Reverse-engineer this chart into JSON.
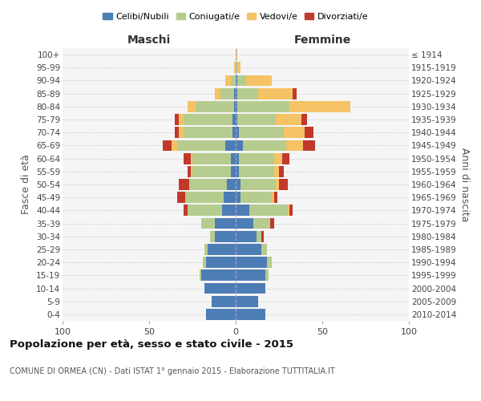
{
  "age_groups": [
    "0-4",
    "5-9",
    "10-14",
    "15-19",
    "20-24",
    "25-29",
    "30-34",
    "35-39",
    "40-44",
    "45-49",
    "50-54",
    "55-59",
    "60-64",
    "65-69",
    "70-74",
    "75-79",
    "80-84",
    "85-89",
    "90-94",
    "95-99",
    "100+"
  ],
  "birth_years": [
    "2010-2014",
    "2005-2009",
    "2000-2004",
    "1995-1999",
    "1990-1994",
    "1985-1989",
    "1980-1984",
    "1975-1979",
    "1970-1974",
    "1965-1969",
    "1960-1964",
    "1955-1959",
    "1950-1954",
    "1945-1949",
    "1940-1944",
    "1935-1939",
    "1930-1934",
    "1925-1929",
    "1920-1924",
    "1915-1919",
    "≤ 1914"
  ],
  "colors": {
    "celibi": "#4d7db5",
    "coniugati": "#b5cc8e",
    "vedovi": "#f5c265",
    "divorziati": "#c0392b"
  },
  "males": {
    "celibi": [
      17,
      14,
      18,
      20,
      17,
      16,
      12,
      12,
      8,
      7,
      5,
      3,
      3,
      6,
      2,
      2,
      1,
      1,
      0,
      0,
      0
    ],
    "coniugati": [
      0,
      0,
      0,
      1,
      2,
      2,
      3,
      8,
      20,
      22,
      22,
      22,
      22,
      28,
      28,
      28,
      22,
      8,
      3,
      0,
      0
    ],
    "vedovi": [
      0,
      0,
      0,
      0,
      0,
      0,
      0,
      0,
      0,
      0,
      0,
      1,
      1,
      3,
      3,
      3,
      5,
      3,
      3,
      1,
      0
    ],
    "divorziati": [
      0,
      0,
      0,
      0,
      0,
      0,
      0,
      0,
      2,
      5,
      6,
      2,
      4,
      5,
      2,
      2,
      0,
      0,
      0,
      0,
      0
    ]
  },
  "females": {
    "nubili": [
      17,
      13,
      17,
      17,
      18,
      15,
      12,
      10,
      8,
      3,
      3,
      2,
      2,
      4,
      2,
      1,
      1,
      1,
      1,
      0,
      0
    ],
    "coniugate": [
      0,
      0,
      0,
      2,
      3,
      3,
      3,
      10,
      22,
      18,
      20,
      20,
      20,
      25,
      26,
      22,
      30,
      12,
      5,
      1,
      0
    ],
    "vedove": [
      0,
      0,
      0,
      0,
      0,
      0,
      0,
      0,
      1,
      1,
      2,
      3,
      5,
      10,
      12,
      15,
      35,
      20,
      15,
      2,
      1
    ],
    "divorziate": [
      0,
      0,
      0,
      0,
      0,
      0,
      1,
      2,
      2,
      2,
      5,
      3,
      4,
      7,
      5,
      3,
      0,
      2,
      0,
      0,
      0
    ]
  },
  "xlim": 100,
  "title": "Popolazione per età, sesso e stato civile - 2015",
  "subtitle": "COMUNE DI ORMEA (CN) - Dati ISTAT 1° gennaio 2015 - Elaborazione TUTTITALIA.IT",
  "ylabel": "Fasce di età",
  "ylabel_right": "Anni di nascita",
  "xlabel_left": "Maschi",
  "xlabel_right": "Femmine"
}
